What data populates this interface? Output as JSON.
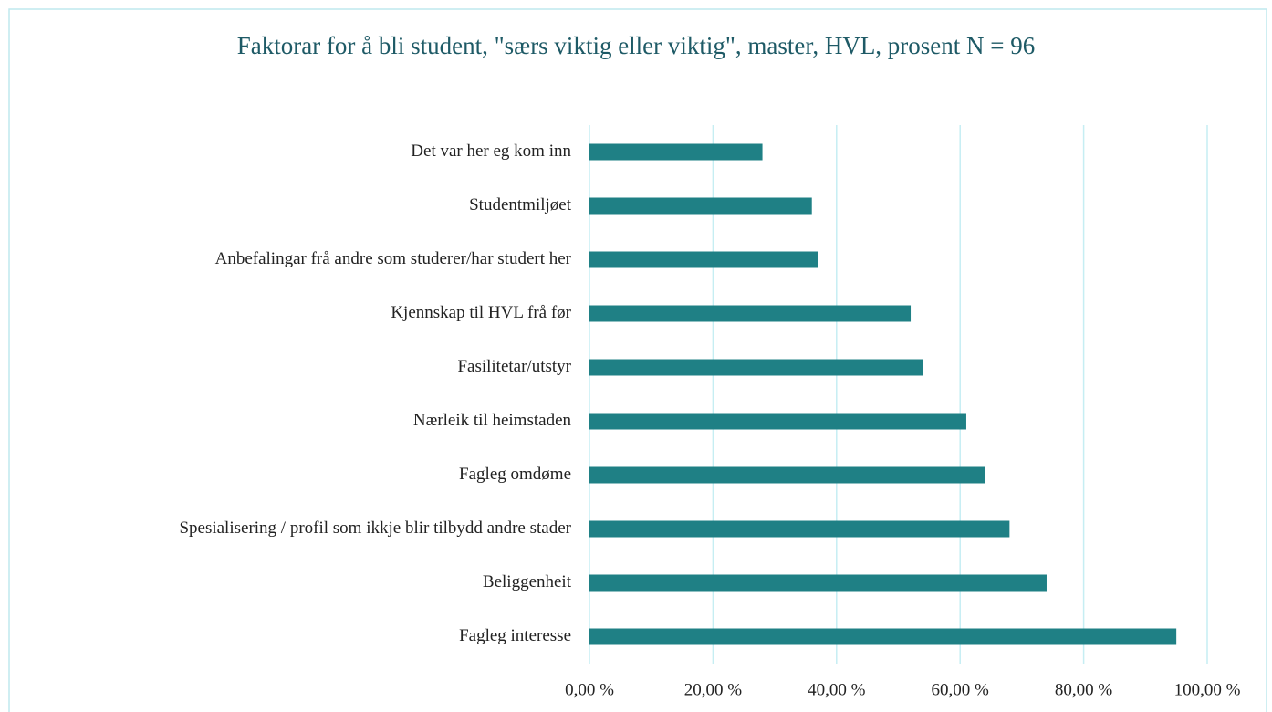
{
  "chart_data": {
    "type": "barh",
    "title": "Faktorar for å bli student, \"særs viktig eller viktig\", master, HVL, prosent N = 96",
    "categories": [
      "Det var her eg kom inn",
      "Studentmiljøet",
      "Anbefalingar frå andre som studerer/har studert her",
      "Kjennskap til HVL frå før",
      "Fasilitetar/utstyr",
      "Nærleik til heimstaden",
      "Fagleg omdøme",
      "Spesialisering / profil som ikkje blir tilbydd andre stader",
      "Beliggenheit",
      "Fagleg interesse"
    ],
    "values": [
      28,
      36,
      37,
      52,
      54,
      61,
      64,
      68,
      74,
      95
    ],
    "color": "#1f8085",
    "xlim": [
      0,
      100
    ],
    "xticks": [
      {
        "value": 0,
        "label": "0,00 %"
      },
      {
        "value": 20,
        "label": "20,00 %"
      },
      {
        "value": 40,
        "label": "40,00 %"
      },
      {
        "value": 60,
        "label": "60,00 %"
      },
      {
        "value": 80,
        "label": "80,00 %"
      },
      {
        "value": 100,
        "label": "100,00 %"
      }
    ],
    "grid": true
  }
}
